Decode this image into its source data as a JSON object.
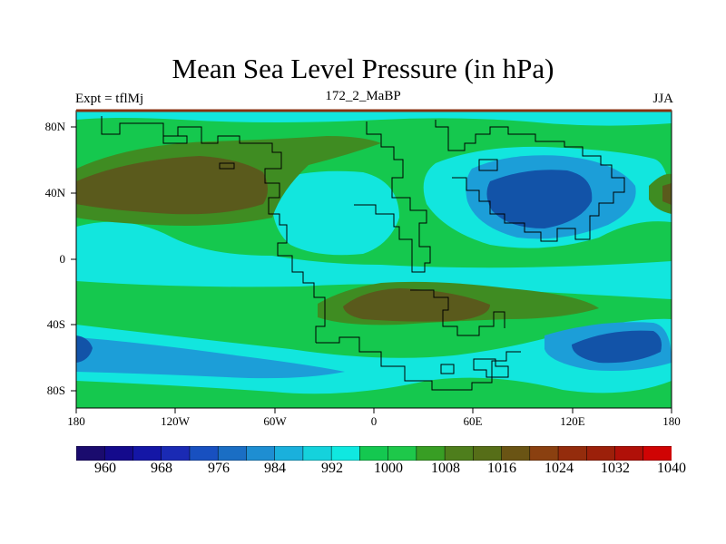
{
  "chart_data": {
    "type": "heatmap",
    "title": "Mean Sea Level Pressure (in hPa)",
    "left_label": "Expt = tflMj",
    "center_label": "172_2_MaBP",
    "right_label": "JJA",
    "x_ticks": [
      "180",
      "120W",
      "60W",
      "0",
      "60E",
      "120E",
      "180"
    ],
    "y_ticks": [
      "80N",
      "40N",
      "0",
      "40S",
      "80S"
    ],
    "x_range": [
      -180,
      180
    ],
    "y_range": [
      -90,
      90
    ],
    "colorbar_labels": [
      "960",
      "968",
      "976",
      "984",
      "992",
      "1000",
      "1008",
      "1016",
      "1024",
      "1032",
      "1040"
    ],
    "colorbar_colors": [
      "#1a0b6e",
      "#140a8c",
      "#1416a6",
      "#1a2ab4",
      "#1850c0",
      "#1a6ec4",
      "#1e8ed2",
      "#1ab0dc",
      "#15d2dc",
      "#10e8e0",
      "#14c850",
      "#1ec84a",
      "#389e24",
      "#4e7e1c",
      "#566e18",
      "#6a5414",
      "#8a4010",
      "#942c0c",
      "#9c200a",
      "#b01008",
      "#d00404"
    ]
  },
  "colors": {
    "low_deep": "#1253a8",
    "low": "#1c9ed8",
    "below_normal": "#12e6de",
    "normal": "#15c84e",
    "high": "#3f8c22",
    "very_high": "#5a5a1c",
    "frame": "#8a3010"
  }
}
